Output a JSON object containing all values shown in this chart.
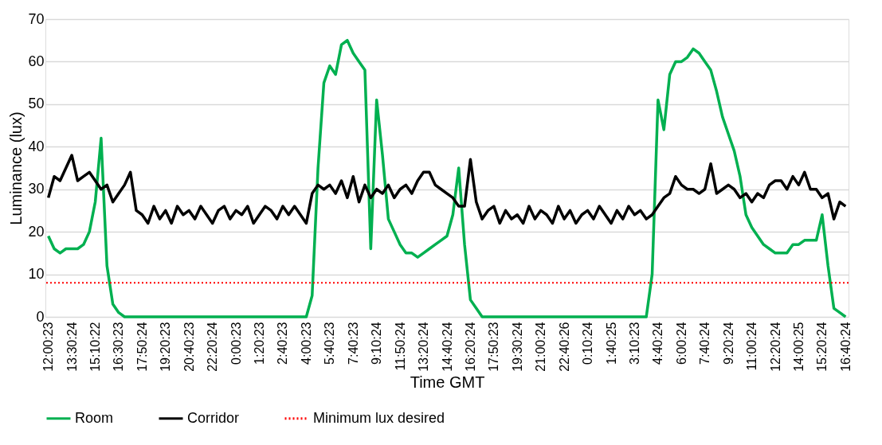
{
  "chart_data": {
    "type": "line",
    "xlabel": "Time GMT",
    "ylabel": "Luminance (lux)",
    "categories": [
      "12:00:23",
      null,
      null,
      null,
      "13:30:24",
      null,
      null,
      null,
      "15:10:22",
      null,
      null,
      null,
      "16:30:23",
      null,
      null,
      null,
      "17:50:24",
      null,
      null,
      null,
      "19:20:23",
      null,
      null,
      null,
      "20:40:23",
      null,
      null,
      null,
      "22:20:24",
      null,
      null,
      null,
      "0:00:23",
      null,
      null,
      null,
      "1:20:23",
      null,
      null,
      null,
      "2:40:23",
      null,
      null,
      null,
      "4:00:23",
      null,
      null,
      null,
      "5:40:23",
      null,
      null,
      null,
      "7:40:23",
      null,
      null,
      null,
      "9:10:24",
      null,
      null,
      null,
      "11:50:24",
      null,
      null,
      null,
      "13:20:24",
      null,
      null,
      null,
      "14:40:24",
      null,
      null,
      null,
      "16:20:24",
      null,
      null,
      null,
      "17:50:23",
      null,
      null,
      null,
      "19:30:24",
      null,
      null,
      null,
      "21:00:24",
      null,
      null,
      null,
      "22:40:26",
      null,
      null,
      null,
      "0:10:24",
      null,
      null,
      null,
      "1:40:25",
      null,
      null,
      null,
      "3:10:23",
      null,
      null,
      null,
      "4:40:24",
      null,
      null,
      null,
      "6:00:24",
      null,
      null,
      null,
      "7:40:24",
      null,
      null,
      null,
      "9:20:24",
      null,
      null,
      null,
      "11:00:24",
      null,
      null,
      null,
      "12:20:24",
      null,
      null,
      null,
      "14:00:25",
      null,
      null,
      null,
      "15:20:24",
      null,
      null,
      null,
      "16:40:24"
    ],
    "series": [
      {
        "name": "Room",
        "color": "#00b050",
        "values": [
          19,
          16,
          15,
          16,
          16,
          16,
          17,
          20,
          27,
          42,
          12,
          3,
          1,
          0,
          0,
          0,
          0,
          0,
          0,
          0,
          0,
          0,
          0,
          0,
          0,
          0,
          0,
          0,
          0,
          0,
          0,
          0,
          0,
          0,
          0,
          0,
          0,
          0,
          0,
          0,
          0,
          0,
          0,
          0,
          0,
          5,
          35,
          55,
          59,
          57,
          64,
          65,
          62,
          60,
          58,
          16,
          51,
          38,
          23,
          20,
          17,
          15,
          15,
          14,
          15,
          16,
          17,
          18,
          19,
          24,
          35,
          17,
          4,
          2,
          0,
          0,
          0,
          0,
          0,
          0,
          0,
          0,
          0,
          0,
          0,
          0,
          0,
          0,
          0,
          0,
          0,
          0,
          0,
          0,
          0,
          0,
          0,
          0,
          0,
          0,
          0,
          0,
          0,
          10,
          51,
          44,
          57,
          60,
          60,
          61,
          63,
          62,
          60,
          58,
          53,
          47,
          43,
          39,
          33,
          24,
          21,
          19,
          17,
          16,
          15,
          15,
          15,
          17,
          17,
          18,
          18,
          18,
          24,
          12,
          2,
          1,
          0
        ]
      },
      {
        "name": "Corridor",
        "color": "#000000",
        "values": [
          28,
          33,
          32,
          35,
          38,
          32,
          33,
          34,
          32,
          30,
          31,
          27,
          29,
          31,
          34,
          25,
          24,
          22,
          26,
          23,
          25,
          22,
          26,
          24,
          25,
          23,
          26,
          24,
          22,
          25,
          26,
          23,
          25,
          24,
          26,
          22,
          24,
          26,
          25,
          23,
          26,
          24,
          26,
          24,
          22,
          29,
          31,
          30,
          31,
          29,
          32,
          28,
          33,
          27,
          31,
          28,
          30,
          29,
          31,
          28,
          30,
          31,
          29,
          32,
          34,
          34,
          31,
          30,
          29,
          28,
          26,
          26,
          37,
          27,
          23,
          25,
          26,
          22,
          25,
          23,
          24,
          22,
          26,
          23,
          25,
          24,
          22,
          26,
          23,
          25,
          22,
          24,
          25,
          23,
          26,
          24,
          22,
          25,
          23,
          26,
          24,
          25,
          23,
          24,
          26,
          28,
          29,
          33,
          31,
          30,
          30,
          29,
          30,
          36,
          29,
          30,
          31,
          30,
          28,
          29,
          27,
          29,
          28,
          31,
          32,
          32,
          30,
          33,
          31,
          34,
          30,
          30,
          28,
          29,
          23,
          27,
          26
        ]
      }
    ],
    "ref_lines": [
      {
        "axis": "y",
        "value": 8,
        "label": "Minimum lux desired",
        "color": "#ff0000",
        "line_style": "dotted"
      }
    ],
    "ylim": [
      0,
      70
    ],
    "yticks": [
      0,
      10,
      20,
      30,
      40,
      50,
      60,
      70
    ],
    "grid": "y",
    "legend": "bottom"
  }
}
